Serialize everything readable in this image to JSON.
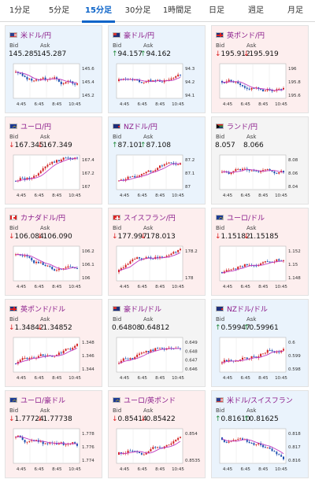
{
  "tabs": [
    {
      "label": "1分足",
      "active": false
    },
    {
      "label": "5分足",
      "active": false
    },
    {
      "label": "15分足",
      "active": true
    },
    {
      "label": "30分足",
      "active": false
    },
    {
      "label": "1時間足",
      "active": false
    },
    {
      "label": "日足",
      "active": false
    },
    {
      "label": "週足",
      "active": false
    },
    {
      "label": "月足",
      "active": false
    }
  ],
  "bid_label": "Bid",
  "ask_label": "Ask",
  "x_ticks": [
    "4:45",
    "6:45",
    "8:45",
    "10:45"
  ],
  "cards": [
    {
      "pair": "米ドル/円",
      "flag": "us",
      "bg": "blue",
      "bid": "145.285",
      "ask": "145.287",
      "bid_dir": "",
      "ask_dir": "",
      "y_ticks": [
        "145.6",
        "145.4",
        "145.2"
      ],
      "trend": "down"
    },
    {
      "pair": "豪ドル/円",
      "flag": "au",
      "bg": "blue",
      "bid": "94.157",
      "ask": "94.162",
      "bid_dir": "up",
      "ask_dir": "up",
      "y_ticks": [
        "94.3",
        "94.2",
        "94.1"
      ],
      "trend": "flat"
    },
    {
      "pair": "英ポンド/円",
      "flag": "gb",
      "bg": "pink",
      "bid": "195.912",
      "ask": "195.919",
      "bid_dir": "down",
      "ask_dir": "down",
      "y_ticks": [
        "196",
        "195.8",
        "195.6"
      ],
      "trend": "flat"
    },
    {
      "pair": "ユーロ/円",
      "flag": "eu",
      "bg": "pink",
      "bid": "167.345",
      "ask": "167.349",
      "bid_dir": "down",
      "ask_dir": "down",
      "y_ticks": [
        "167.4",
        "167.2",
        "167"
      ],
      "trend": "up"
    },
    {
      "pair": "NZドル/円",
      "flag": "nz",
      "bg": "blue",
      "bid": "87.101",
      "ask": "87.108",
      "bid_dir": "up",
      "ask_dir": "up",
      "y_ticks": [
        "87.2",
        "87.1",
        "87"
      ],
      "trend": "up"
    },
    {
      "pair": "ランド/円",
      "flag": "za",
      "bg": "grey",
      "bid": "8.057",
      "ask": "8.066",
      "bid_dir": "",
      "ask_dir": "",
      "y_ticks": [
        "8.08",
        "8.06",
        "8.04"
      ],
      "trend": "flat"
    },
    {
      "pair": "カナダドル/円",
      "flag": "ca",
      "bg": "pink",
      "bid": "106.084",
      "ask": "106.090",
      "bid_dir": "down",
      "ask_dir": "down",
      "y_ticks": [
        "106.2",
        "106.1",
        "106"
      ],
      "trend": "down"
    },
    {
      "pair": "スイスフラン/円",
      "flag": "ch",
      "bg": "pink",
      "bid": "177.997",
      "ask": "178.013",
      "bid_dir": "down",
      "ask_dir": "down",
      "y_ticks": [
        "178.2",
        "178"
      ],
      "trend": "up"
    },
    {
      "pair": "ユーロ/ドル",
      "flag": "eu",
      "bg": "pink",
      "bid": "1.15182",
      "ask": "1.15185",
      "bid_dir": "down",
      "ask_dir": "down",
      "y_ticks": [
        "1.152",
        "1.15",
        "1.148"
      ],
      "trend": "up"
    },
    {
      "pair": "英ポンド/ドル",
      "flag": "gb",
      "bg": "pink",
      "bid": "1.34842",
      "ask": "1.34852",
      "bid_dir": "down",
      "ask_dir": "down",
      "y_ticks": [
        "1.348",
        "1.346",
        "1.344"
      ],
      "trend": "up"
    },
    {
      "pair": "豪ドル/ドル",
      "flag": "au",
      "bg": "grey",
      "bid": "0.64808",
      "ask": "0.64812",
      "bid_dir": "",
      "ask_dir": "",
      "y_ticks": [
        "0.649",
        "0.648",
        "0.647",
        "0.646"
      ],
      "trend": "up"
    },
    {
      "pair": "NZドル/ドル",
      "flag": "nz",
      "bg": "blue",
      "bid": "0.59947",
      "ask": "0.59961",
      "bid_dir": "up",
      "ask_dir": "up",
      "y_ticks": [
        "0.6",
        "0.599",
        "0.598"
      ],
      "trend": "up"
    },
    {
      "pair": "ユーロ/豪ドル",
      "flag": "eu",
      "bg": "pink",
      "bid": "1.77724",
      "ask": "1.77738",
      "bid_dir": "down",
      "ask_dir": "down",
      "y_ticks": [
        "1.778",
        "1.776",
        "1.774"
      ],
      "trend": "down"
    },
    {
      "pair": "ユーロ/英ポンド",
      "flag": "eu",
      "bg": "pink",
      "bid": "0.85414",
      "ask": "0.85422",
      "bid_dir": "down",
      "ask_dir": "down",
      "y_ticks": [
        "0.854",
        "0.8535"
      ],
      "trend": "up"
    },
    {
      "pair": "米ドル/スイスフラン",
      "flag": "us",
      "bg": "blue",
      "bid": "0.81610",
      "ask": "0.81625",
      "bid_dir": "up",
      "ask_dir": "up",
      "y_ticks": [
        "0.818",
        "0.817",
        "0.816"
      ],
      "trend": "down"
    }
  ],
  "colors": {
    "candle_up": "#d22222",
    "candle_down": "#1d4fb0",
    "moving_average": "#c03ac0",
    "accent": "#0b63c8"
  }
}
